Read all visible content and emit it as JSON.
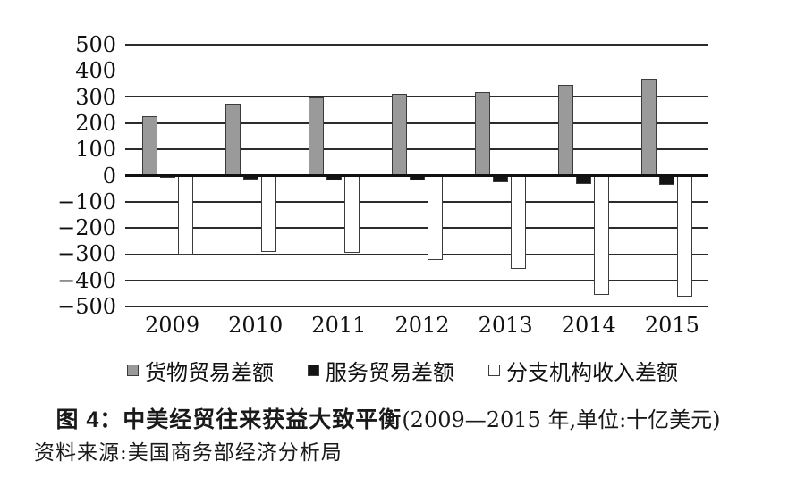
{
  "colors": {
    "goods_fill": "#9a9a9a",
    "services_fill": "#141414",
    "branch_fill": "#ffffff",
    "bar_border": "#3c3c3c",
    "grid": "#2b2b2b",
    "text": "#111111",
    "background": "#ffffff"
  },
  "chart_data": {
    "type": "bar",
    "categories": [
      "2009",
      "2010",
      "2011",
      "2012",
      "2013",
      "2014",
      "2015"
    ],
    "series": [
      {
        "name": "货物贸易差额",
        "color_key": "goods_fill",
        "values": [
          227,
          274,
          300,
          313,
          320,
          345,
          370
        ]
      },
      {
        "name": "服务贸易差额",
        "color_key": "services_fill",
        "values": [
          -8,
          -14,
          -20,
          -20,
          -25,
          -32,
          -35
        ]
      },
      {
        "name": "分支机构收入差额",
        "color_key": "branch_fill",
        "values": [
          -303,
          -291,
          -296,
          -324,
          -356,
          -457,
          -464
        ]
      }
    ],
    "ylim": [
      -500,
      500
    ],
    "ytick_step": 100,
    "ytick_labels": [
      "500",
      "400",
      "300",
      "200",
      "100",
      "0",
      "−100",
      "−200",
      "−300",
      "−400",
      "−500"
    ],
    "grid": true,
    "legend_position": "bottom",
    "title": "图 4：中美经贸往来获益大致平衡(2009—2015 年,单位:十亿美元)",
    "units": "十亿美元"
  },
  "caption": {
    "figure_label": "图 4：",
    "title_bold": "中美经贸往来获益大致平衡",
    "title_note": "(2009—2015 年,单位:十亿美元)"
  },
  "source": {
    "text": "资料来源:美国商务部经济分析局"
  }
}
